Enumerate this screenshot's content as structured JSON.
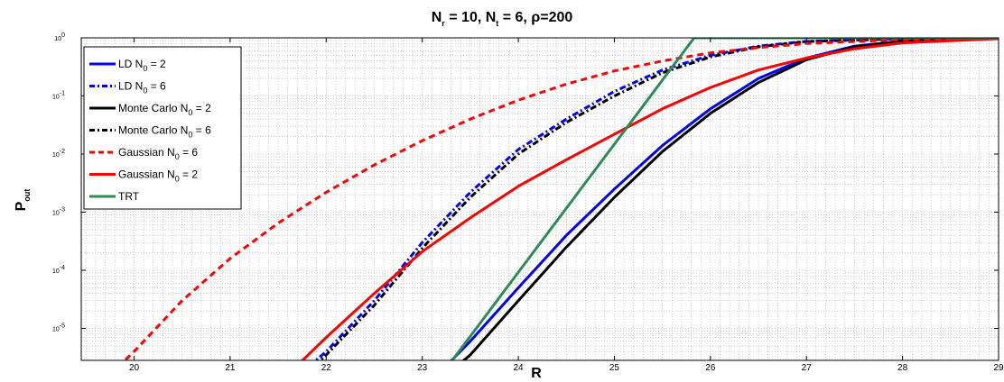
{
  "chart_data": {
    "type": "line",
    "title": {
      "prefix": "N",
      "sub1": "r",
      "mid1": " = 10, N",
      "sub2": "t",
      "mid2": " = 6, ρ=200"
    },
    "xlabel": "R",
    "ylabel": {
      "main": "P",
      "sub": "out"
    },
    "xlim": [
      19.45,
      29
    ],
    "ylim_log10": [
      -5.55,
      0
    ],
    "y_scale": "log",
    "grid": true,
    "legend_position": "top-left",
    "x_ticks": [
      "20",
      "21",
      "22",
      "23",
      "24",
      "25",
      "26",
      "27",
      "28",
      "29"
    ],
    "y_ticks": [
      {
        "base": "10",
        "exp": "-5"
      },
      {
        "base": "10",
        "exp": "-4"
      },
      {
        "base": "10",
        "exp": "-3"
      },
      {
        "base": "10",
        "exp": "-2"
      },
      {
        "base": "10",
        "exp": "-1"
      },
      {
        "base": "10",
        "exp": "0"
      }
    ],
    "series": [
      {
        "name": {
          "prefix": "LD N",
          "sub": "0",
          "suffix": " = 2"
        },
        "color": "#0000ff",
        "dash": "solid",
        "x": [
          23.16,
          23.5,
          24.0,
          24.5,
          25.0,
          25.5,
          26.0,
          26.5,
          27.0,
          27.5,
          28.0,
          29.0
        ],
        "y": [
          1.6e-06,
          6e-06,
          5e-05,
          0.0004,
          0.0025,
          0.014,
          0.06,
          0.2,
          0.45,
          0.72,
          0.88,
          0.99
        ]
      },
      {
        "name": {
          "prefix": "LD N",
          "sub": "0",
          "suffix": " = 6"
        },
        "color": "#0000ff",
        "dash": "dashdot",
        "x": [
          21.72,
          22.0,
          22.5,
          23.0,
          23.5,
          24.0,
          24.5,
          25.0,
          25.5,
          26.0,
          26.5,
          27.0,
          28.0,
          29.0
        ],
        "y": [
          1.6e-06,
          4e-06,
          3e-05,
          0.0003,
          0.0022,
          0.012,
          0.04,
          0.12,
          0.28,
          0.5,
          0.72,
          0.87,
          0.97,
          0.995
        ]
      },
      {
        "name": {
          "prefix": "Monte Carlo N",
          "sub": "0",
          "suffix": " = 2"
        },
        "color": "#000000",
        "dash": "solid",
        "x": [
          23.26,
          23.5,
          24.0,
          24.5,
          25.0,
          25.5,
          26.0,
          26.5,
          27.0,
          27.5,
          28.0,
          29.0
        ],
        "y": [
          1.6e-06,
          3.5e-06,
          3e-05,
          0.00025,
          0.0018,
          0.011,
          0.05,
          0.17,
          0.42,
          0.7,
          0.87,
          0.99
        ]
      },
      {
        "name": {
          "prefix": "Monte Carlo N",
          "sub": "0",
          "suffix": " = 6"
        },
        "color": "#000000",
        "dash": "dashdot",
        "x": [
          21.78,
          22.0,
          22.5,
          23.0,
          23.5,
          24.0,
          24.5,
          25.0,
          25.5,
          26.0,
          26.5,
          27.0,
          28.0,
          29.0
        ],
        "y": [
          1.6e-06,
          3.5e-06,
          2.5e-05,
          0.00024,
          0.0018,
          0.01,
          0.035,
          0.1,
          0.25,
          0.47,
          0.7,
          0.86,
          0.97,
          0.995
        ]
      },
      {
        "name": {
          "prefix": "Gaussian N",
          "sub": "0",
          "suffix": " = 6"
        },
        "color": "#ff0000",
        "dash": "dashed",
        "x": [
          19.75,
          20.0,
          20.5,
          21.0,
          21.5,
          22.0,
          22.5,
          23.0,
          23.5,
          24.0,
          24.5,
          25.0,
          25.5,
          26.0,
          26.5,
          27.0,
          28.0,
          29.0
        ],
        "y": [
          1.6e-06,
          4e-06,
          3e-05,
          0.00016,
          0.00065,
          0.0022,
          0.0065,
          0.017,
          0.04,
          0.085,
          0.16,
          0.27,
          0.4,
          0.55,
          0.68,
          0.8,
          0.93,
          0.99
        ]
      },
      {
        "name": {
          "prefix": "Gaussian N",
          "sub": "0",
          "suffix": " = 2"
        },
        "color": "#ff0000",
        "dash": "solid",
        "x": [
          21.6,
          22.0,
          22.5,
          23.0,
          23.5,
          24.0,
          24.5,
          25.0,
          25.5,
          26.0,
          26.5,
          27.0,
          27.5,
          28.0,
          29.0
        ],
        "y": [
          1.6e-06,
          7e-06,
          4e-05,
          0.00021,
          0.0008,
          0.0028,
          0.008,
          0.022,
          0.06,
          0.14,
          0.28,
          0.45,
          0.65,
          0.82,
          0.97
        ]
      },
      {
        "name": {
          "prefix": "TRT",
          "sub": "",
          "suffix": ""
        },
        "color": "#2e8b57",
        "dash": "solid",
        "x": [
          23.2,
          25.83,
          29.0
        ],
        "y": [
          1.6e-06,
          1.0,
          1.0
        ]
      }
    ]
  }
}
